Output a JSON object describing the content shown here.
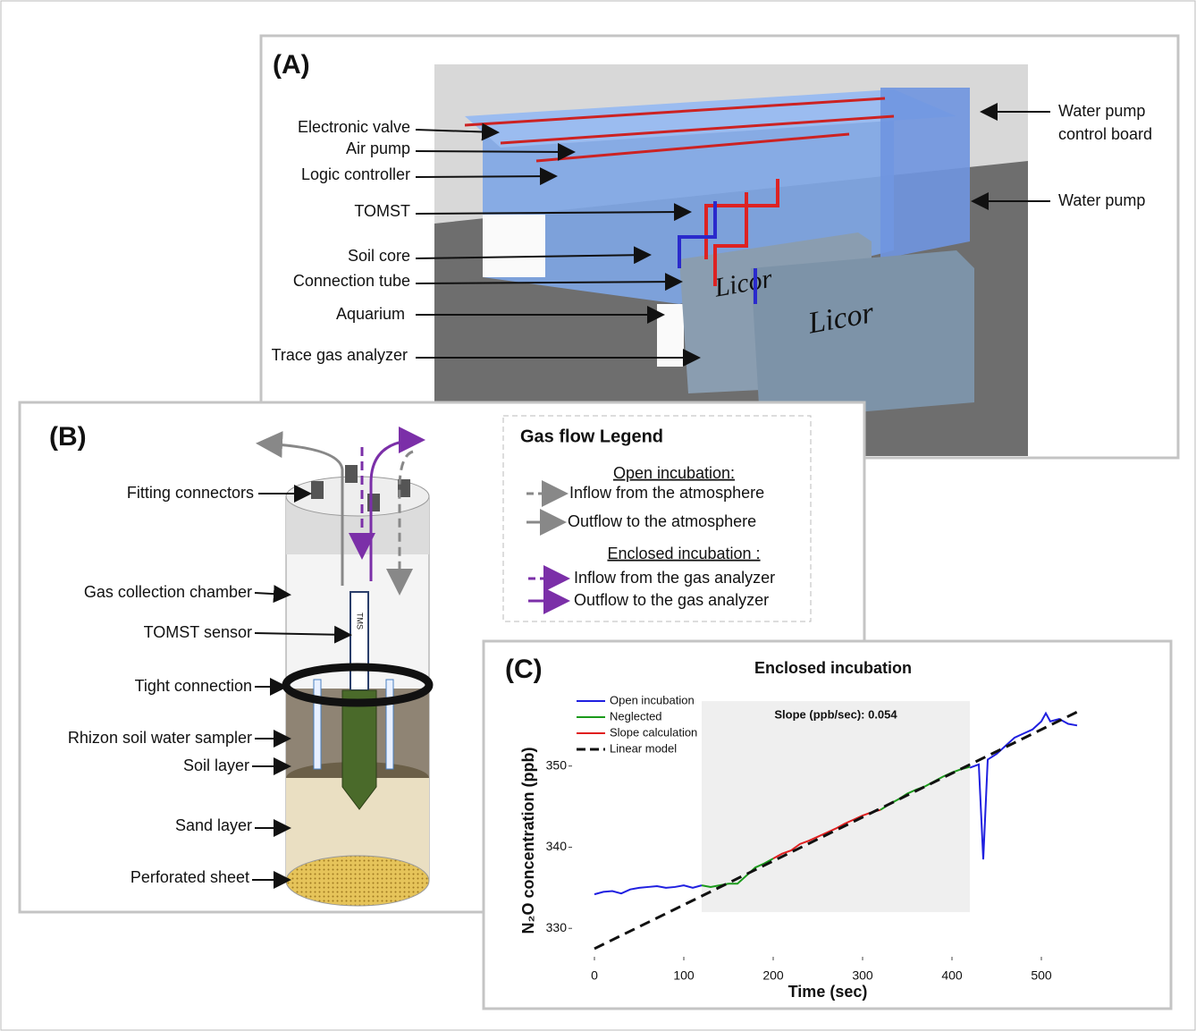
{
  "panel_a": {
    "label": "(A)",
    "callouts": [
      "Electronic valve",
      "Air pump",
      "Logic controller",
      "TOMST",
      "Soil core",
      "Connection tube",
      "Aquarium",
      "Trace gas analyzer"
    ],
    "right_callouts": [
      [
        "Water pump",
        "control board"
      ],
      [
        "Water pump"
      ]
    ],
    "brand": [
      "Licor",
      "Licor"
    ]
  },
  "panel_b": {
    "label": "(B)",
    "callouts": [
      "Fitting connectors",
      "Gas collection chamber",
      "TOMST sensor",
      "Tight connection",
      "Rhizon soil water sampler",
      "Soil layer",
      "Sand layer",
      "Perforated sheet"
    ],
    "sensor_text": "TMS",
    "legend": {
      "title": "Gas flow Legend",
      "groups": [
        {
          "heading": "Open incubation:",
          "items": [
            "Inflow from the atmosphere",
            "Outflow to the atmosphere"
          ]
        },
        {
          "heading": "Enclosed incubation :",
          "items": [
            "Inflow from the gas analyzer",
            "Outflow to the gas analyzer"
          ]
        }
      ]
    }
  },
  "panel_c": {
    "label": "(C)",
    "chart_data": {
      "type": "line",
      "title": "Enclosed incubation",
      "x_label": "Time (sec)",
      "y_label": "N₂O concentration (ppb)",
      "annotation": "Slope (ppb/sec): 0.054",
      "xlim": [
        -25,
        545
      ],
      "ylim": [
        326.5,
        359
      ],
      "xticks": [
        0,
        100,
        200,
        300,
        400,
        500
      ],
      "yticks": [
        330,
        340,
        350
      ],
      "highlight": {
        "x": [
          120,
          420
        ],
        "y": [
          332,
          358
        ]
      },
      "legend": "upper left",
      "series": [
        {
          "name": "Open incubation",
          "color": "#1f1fe0",
          "x": [
            0,
            10,
            20,
            30,
            40,
            50,
            60,
            70,
            80,
            90,
            100,
            110,
            120,
            270,
            420,
            430,
            435,
            440,
            450,
            460,
            470,
            480,
            490,
            500,
            505,
            510,
            520,
            530,
            540
          ],
          "values": [
            334.2,
            334.5,
            334.6,
            334.3,
            334.8,
            335,
            335.1,
            335.2,
            335,
            335.1,
            335.3,
            335,
            335.3,
            null,
            349.8,
            350.2,
            338.5,
            350.8,
            351.5,
            352.5,
            353.5,
            354,
            354.5,
            355.5,
            356.5,
            355.5,
            355.8,
            355.2,
            355
          ]
        },
        {
          "name": "Neglected",
          "color": "#1a9a1a",
          "x": [
            120,
            130,
            140,
            150,
            160,
            170,
            180,
            190,
            200,
            260,
            320,
            330,
            340,
            350,
            360,
            370,
            380,
            390,
            400,
            410,
            420
          ],
          "values": [
            335.3,
            335.1,
            335.3,
            335.5,
            335.5,
            336.5,
            337.5,
            338,
            338.6,
            null,
            344.6,
            345.3,
            345.9,
            346.6,
            347.1,
            347.5,
            348.1,
            348.7,
            349.2,
            349.6,
            349.9
          ]
        },
        {
          "name": "Slope calculation",
          "color": "#e01f1f",
          "x": [
            200,
            210,
            220,
            230,
            240,
            250,
            260,
            270,
            280,
            290,
            300,
            310,
            320
          ],
          "values": [
            338.6,
            339.2,
            339.6,
            340.4,
            340.8,
            341.3,
            341.8,
            342.3,
            342.9,
            343.4,
            343.9,
            344.3,
            344.6
          ]
        },
        {
          "name": "Linear model",
          "color": "#111111",
          "dashed": true,
          "x": [
            0,
            540
          ],
          "values": [
            327.5,
            356.66
          ]
        }
      ]
    }
  }
}
